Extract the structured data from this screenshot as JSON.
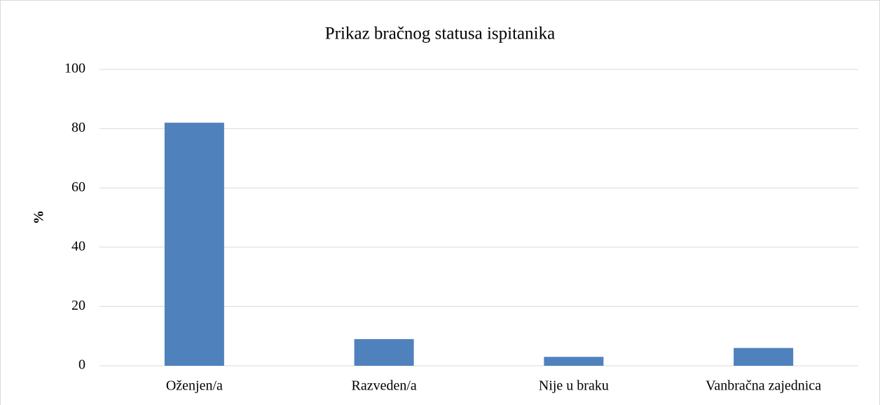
{
  "chart_data": {
    "type": "bar",
    "title": "Prikaz bračnog statusa ispitanika",
    "y_label": "%",
    "categories": [
      "Oženjen/a",
      "Razveden/a",
      "Nije u braku",
      "Vanbračna zajednica"
    ],
    "values": [
      82,
      9,
      3,
      6
    ],
    "color": "#4f81bd",
    "ylim": [
      0,
      100
    ],
    "yticks": [
      0,
      20,
      40,
      60,
      80,
      100
    ],
    "grid": true
  }
}
